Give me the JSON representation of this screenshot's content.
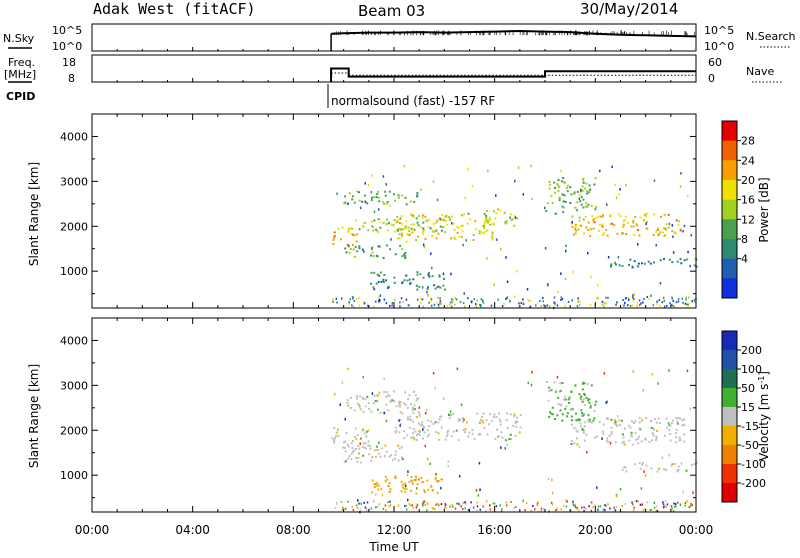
{
  "header": {
    "station": "Adak West (fitACF)",
    "beam": "Beam 03",
    "date": "30/May/2014"
  },
  "top_panels": {
    "nsky": {
      "label": "N.Sky",
      "left_ticks": [
        "10^5",
        "10^0"
      ],
      "right_ticks": [
        "10^5",
        "10^0"
      ],
      "right_label": "N.Search"
    },
    "freq": {
      "label_line1": "Freq.",
      "label_line2": "[MHz]",
      "left_ticks": [
        "18",
        "8"
      ],
      "right_ticks": [
        "60",
        "0"
      ],
      "right_label": "Nave"
    },
    "cpid": {
      "label": "CPID",
      "text": "normalsound (fast) -157 RF"
    }
  },
  "colorbars": {
    "power": {
      "label": "Power [dB]",
      "ticks": [
        "28",
        "24",
        "20",
        "16",
        "12",
        "8",
        "4"
      ],
      "colors": [
        "#e40000",
        "#f06000",
        "#f5a000",
        "#f0e000",
        "#a0d020",
        "#4aa050",
        "#2e8a70",
        "#1f5fb0",
        "#1030e0"
      ]
    },
    "velocity": {
      "label_main": "Velocity [m s",
      "label_sup": "-1",
      "label_end": "]",
      "ticks": [
        "200",
        "100",
        "50",
        "15",
        "-15",
        "-50",
        "-100",
        "-200"
      ],
      "colors": [
        "#1a2ab8",
        "#2050a8",
        "#1e7050",
        "#40b030",
        "#c0c0c0",
        "#f0b000",
        "#f08000",
        "#f03000",
        "#e00000"
      ]
    }
  },
  "chart_data": [
    {
      "type": "line",
      "name": "N.Sky / N.Search",
      "x_unit": "hours UT",
      "segments": [
        {
          "x": [
            9.5,
            10,
            11,
            12,
            13,
            14,
            15,
            16,
            17,
            18,
            19,
            20,
            21,
            22,
            23,
            24
          ],
          "y_log10": [
            3.2,
            3.3,
            3.4,
            3.4,
            3.5,
            3.4,
            3.5,
            3.6,
            3.7,
            3.6,
            3.5,
            3.2,
            3.0,
            2.9,
            2.8,
            2.7
          ]
        }
      ],
      "ylim_log10": [
        0,
        5
      ]
    },
    {
      "type": "line",
      "name": "Freq / Nave",
      "freq_segments": [
        {
          "x": [
            9.5,
            10.2
          ],
          "y": [
            13
          ]
        },
        {
          "x": [
            10.2,
            18.0
          ],
          "y": [
            10
          ]
        },
        {
          "x": [
            18.0,
            24
          ],
          "y": [
            12
          ]
        }
      ],
      "nave": [
        {
          "x": [
            9.5,
            10.2
          ],
          "y": 20
        },
        {
          "x": [
            10.2,
            24
          ],
          "y": 15
        }
      ],
      "freq_ylim": [
        8,
        18
      ],
      "nave_ylim": [
        0,
        60
      ]
    },
    {
      "type": "heatmap",
      "name": "power",
      "xlabel": "",
      "ylabel": "Slant Range [km]",
      "xlim": [
        0,
        24
      ],
      "ylim": [
        180,
        4500
      ],
      "yticks": [
        1000,
        2000,
        3000,
        4000
      ],
      "bands": [
        {
          "x0": 9.5,
          "x1": 10.5,
          "r0": 1600,
          "r1": 2000,
          "v": 22
        },
        {
          "x0": 10.0,
          "x1": 13.0,
          "r0": 2500,
          "r1": 2800,
          "v": 12
        },
        {
          "x0": 10.0,
          "x1": 14.0,
          "r0": 1900,
          "r1": 2200,
          "v": 14
        },
        {
          "x0": 12.0,
          "x1": 16.0,
          "r0": 1700,
          "r1": 2300,
          "v": 18
        },
        {
          "x0": 15.5,
          "x1": 17.0,
          "r0": 2000,
          "r1": 2400,
          "v": 16
        },
        {
          "x0": 10.0,
          "x1": 12.5,
          "r0": 1300,
          "r1": 1600,
          "v": 10
        },
        {
          "x0": 11.0,
          "x1": 14.0,
          "r0": 600,
          "r1": 1000,
          "v": 8
        },
        {
          "x0": 18.0,
          "x1": 20.0,
          "r0": 2300,
          "r1": 3100,
          "v": 12
        },
        {
          "x0": 19.0,
          "x1": 23.5,
          "r0": 1800,
          "r1": 2300,
          "v": 20
        },
        {
          "x0": 20.5,
          "x1": 24.0,
          "r0": 1100,
          "r1": 1300,
          "v": 8
        }
      ]
    },
    {
      "type": "heatmap",
      "name": "velocity",
      "xlabel": "Time UT",
      "ylabel": "Slant Range [km]",
      "xlim": [
        0,
        24
      ],
      "ylim": [
        180,
        4500
      ],
      "yticks": [
        1000,
        2000,
        3000,
        4000
      ],
      "xticks": [
        "00:00",
        "04:00",
        "08:00",
        "12:00",
        "16:00",
        "20:00",
        "00:00"
      ],
      "bands": [
        {
          "x0": 9.5,
          "x1": 11.0,
          "r0": 1600,
          "r1": 2100,
          "v": 0
        },
        {
          "x0": 10.0,
          "x1": 13.0,
          "r0": 2400,
          "r1": 2900,
          "v": 0
        },
        {
          "x0": 10.0,
          "x1": 12.5,
          "r0": 1300,
          "r1": 1700,
          "v": 0
        },
        {
          "x0": 12.0,
          "x1": 17.0,
          "r0": 1800,
          "r1": 2400,
          "v": 0
        },
        {
          "x0": 11.0,
          "x1": 14.0,
          "r0": 600,
          "r1": 1000,
          "v": -50
        },
        {
          "x0": 18.0,
          "x1": 20.0,
          "r0": 2200,
          "r1": 3100,
          "v": 20
        },
        {
          "x0": 19.0,
          "x1": 23.5,
          "r0": 1700,
          "r1": 2300,
          "v": 0
        },
        {
          "x0": 21.0,
          "x1": 24.0,
          "r0": 1100,
          "r1": 1300,
          "v": 0
        }
      ]
    }
  ]
}
